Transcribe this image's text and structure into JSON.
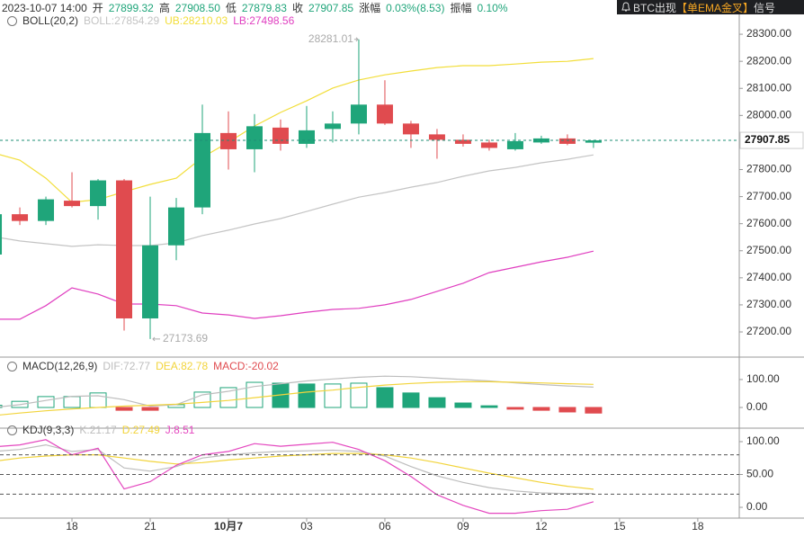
{
  "header": {
    "time": "2023-10-07 14:00",
    "fields": [
      {
        "label": "开",
        "value": "27899.32"
      },
      {
        "label": "高",
        "value": "27908.50"
      },
      {
        "label": "低",
        "value": "27879.83"
      },
      {
        "label": "收",
        "value": "27907.85"
      },
      {
        "label": "涨幅",
        "value": "0.03%(8.53)"
      },
      {
        "label": "振幅",
        "value": "0.10%"
      }
    ]
  },
  "signal": {
    "prefix": "BTC出现",
    "highlight": "【单EMA金叉】",
    "suffix": "信号"
  },
  "xaxis": {
    "xlim": [
      15.24,
      43.59
    ],
    "xticks": [
      18,
      21,
      {
        "value": 24,
        "label": "10月7"
      },
      {
        "value": 27,
        "label": "03"
      },
      {
        "value": 30,
        "label": "06"
      },
      {
        "value": 33,
        "label": "09"
      },
      {
        "value": 36,
        "label": "12"
      },
      {
        "value": 39,
        "label": "15"
      },
      {
        "value": 42,
        "label": "18"
      }
    ]
  },
  "chart_data": [
    {
      "type": "candlestick",
      "title": "BOLL(20,2)",
      "up_color": "#1fa57a",
      "down_color": "#e04b4f",
      "x": [
        15,
        16,
        17,
        18,
        19,
        20,
        21,
        22,
        23,
        24,
        25,
        26,
        27,
        28,
        29,
        30,
        31,
        32,
        33,
        34,
        35,
        36,
        37,
        38
      ],
      "open": [
        27486,
        27635,
        27610,
        27685,
        27665,
        27760,
        27250,
        27520,
        27660,
        27935,
        27875,
        27955,
        27895,
        27950,
        27970,
        28040,
        27970,
        27930,
        27910,
        27900,
        27875,
        27900,
        27915,
        27899.32
      ],
      "close": [
        27635,
        27610,
        27690,
        27665,
        27760,
        27250,
        27520,
        27660,
        27935,
        27875,
        27960,
        27895,
        27945,
        27970,
        28040,
        27970,
        27930,
        27910,
        27895,
        27880,
        27905,
        27915,
        27895,
        27907.85
      ],
      "high": [
        27650,
        27660,
        27700,
        27790,
        27765,
        27765,
        27700,
        27695,
        28040,
        28015,
        28005,
        27985,
        28035,
        28015,
        28281.01,
        28130,
        27980,
        27950,
        27930,
        27910,
        27935,
        27925,
        27930,
        27908.5
      ],
      "low": [
        27470,
        27595,
        27595,
        27660,
        27615,
        27205,
        27173.69,
        27465,
        27635,
        27800,
        27790,
        27870,
        27880,
        27900,
        27930,
        27965,
        27880,
        27840,
        27885,
        27870,
        27870,
        27895,
        27890,
        27879.83
      ],
      "series": [
        {
          "name": "BOLL:27854.29",
          "color": "#c4c4c4",
          "values": [
            27552,
            27536,
            27526,
            27516,
            27522,
            27519,
            27519,
            27529,
            27556,
            27576,
            27599,
            27619,
            27645,
            27672,
            27698,
            27715,
            27735,
            27752,
            27775,
            27795,
            27808,
            27825,
            27838,
            27854.29
          ]
        },
        {
          "name": "UB:28210.03",
          "color": "#f2de3a",
          "values": [
            27861,
            27835,
            27768,
            27679,
            27689,
            27718,
            27745,
            27768,
            27845,
            27901,
            27961,
            28011,
            28054,
            28101,
            28131,
            28150,
            28164,
            28177,
            28184,
            28184,
            28190,
            28197,
            28200,
            28210.03
          ]
        },
        {
          "name": "LB:27498.56",
          "color": "#e03fc0",
          "values": [
            27247,
            27247,
            27297,
            27363,
            27340,
            27303,
            27303,
            27297,
            27270,
            27263,
            27250,
            27260,
            27273,
            27283,
            27287,
            27300,
            27320,
            27350,
            27380,
            27419,
            27439,
            27459,
            27476,
            27498.56
          ]
        }
      ],
      "ylim": [
        27107,
        28380
      ],
      "yticks": [
        {
          "value": 27200,
          "label": "27200.00"
        },
        {
          "value": 27300,
          "label": "27300.00"
        },
        {
          "value": 27400,
          "label": "27400.00"
        },
        {
          "value": 27500,
          "label": "27500.00"
        },
        {
          "value": 27600,
          "label": "27600.00"
        },
        {
          "value": 27700,
          "label": "27700.00"
        },
        {
          "value": 27800,
          "label": "27800.00"
        },
        {
          "value": 27900,
          "label": "27900.00"
        },
        {
          "value": 28000,
          "label": "28000.00"
        },
        {
          "value": 28100,
          "label": "28100.00"
        },
        {
          "value": 28200,
          "label": "28200.00"
        },
        {
          "value": 28300,
          "label": "28300.00"
        }
      ]
    },
    {
      "type": "macd",
      "title": "MACD(12,26,9)",
      "up_color": "#1fa57a",
      "down_color": "#e04b4f",
      "x": [
        15,
        16,
        17,
        18,
        19,
        20,
        21,
        22,
        23,
        24,
        25,
        26,
        27,
        28,
        29,
        30,
        31,
        32,
        33,
        34,
        35,
        36,
        37,
        38
      ],
      "series": [
        {
          "name": "DIF:72.77",
          "color": "#bdbdbd",
          "values": [
            0,
            10,
            25,
            40,
            42,
            28,
            5,
            10,
            45,
            58,
            75,
            85,
            95,
            102,
            108,
            112,
            110,
            105,
            100,
            95,
            88,
            82,
            77,
            72.77
          ]
        },
        {
          "name": "DEA:82.78",
          "color": "#f2d43b",
          "values": [
            -29,
            -20,
            -12,
            -5,
            0,
            5,
            8,
            12,
            18,
            25,
            35,
            45,
            55,
            62,
            72,
            80,
            86,
            90,
            92,
            92,
            90,
            88,
            85,
            82.78
          ]
        },
        {
          "name": "MACD:-20.02",
          "color": "#e04b4f",
          "bars": true,
          "values": [
            8,
            22,
            39,
            39,
            52,
            -10,
            -10,
            10,
            55,
            71,
            90,
            87,
            84,
            84,
            87,
            71,
            52,
            35,
            16,
            6,
            -6,
            -10,
            -16,
            -20.02
          ]
        }
      ],
      "ylim": [
        -74,
        177
      ],
      "yticks": [
        {
          "value": 100,
          "label": "100.00"
        },
        {
          "value": 0,
          "label": "0.00"
        }
      ]
    },
    {
      "type": "kdj",
      "title": "KDJ(9,3,3)",
      "x": [
        15,
        16,
        17,
        18,
        19,
        20,
        21,
        22,
        23,
        24,
        25,
        26,
        27,
        28,
        29,
        30,
        31,
        32,
        33,
        34,
        35,
        36,
        37,
        38
      ],
      "series": [
        {
          "name": "K:21.17",
          "color": "#bdbdbd",
          "values": [
            85,
            88,
            95,
            85,
            88,
            60,
            55,
            62,
            75,
            80,
            83,
            85,
            86,
            87,
            85,
            78,
            62,
            48,
            38,
            30,
            25,
            22,
            21,
            21.17
          ]
        },
        {
          "name": "D:27.49",
          "color": "#f2d43b",
          "values": [
            70,
            75,
            78,
            80,
            80,
            75,
            70,
            66,
            68,
            72,
            75,
            78,
            80,
            82,
            82,
            80,
            75,
            68,
            60,
            52,
            45,
            38,
            32,
            27.49
          ]
        },
        {
          "name": "J:8.51",
          "color": "#e447bf",
          "values": [
            92,
            95,
            103,
            80,
            90,
            28,
            39,
            64,
            80,
            85,
            97,
            93,
            96,
            99,
            88,
            71,
            47,
            19,
            3,
            -9,
            -9,
            -5,
            -3,
            8.51
          ]
        }
      ],
      "levels": [
        80,
        50,
        20
      ],
      "ylim": [
        -16.4,
        120.5
      ],
      "yticks": [
        {
          "value": 100,
          "label": "100.00"
        },
        {
          "value": 50,
          "label": "50.00"
        },
        {
          "value": 0,
          "label": "0.00"
        }
      ]
    }
  ]
}
